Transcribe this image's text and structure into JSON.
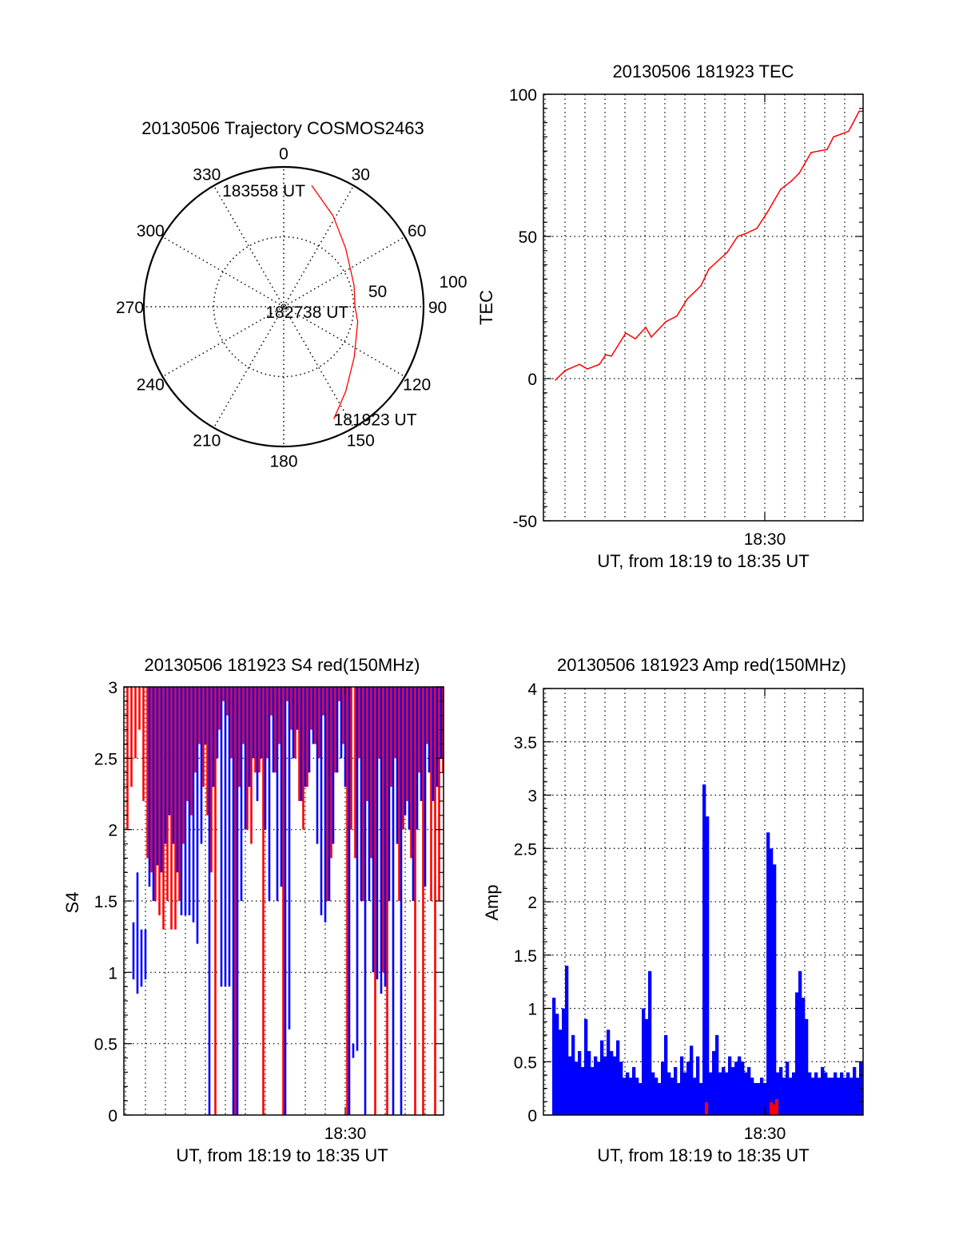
{
  "chart_data": [
    {
      "type": "polar",
      "title": "20130506 Trajectory COSMOS2463",
      "theta_ticks": [
        "0",
        "30",
        "60",
        "90",
        "120",
        "150",
        "180",
        "210",
        "240",
        "270",
        "300",
        "330"
      ],
      "theta_values": [
        0,
        30,
        60,
        90,
        120,
        150,
        180,
        210,
        240,
        270,
        300,
        330
      ],
      "r_ticks": [
        "50",
        "100"
      ],
      "r_values": [
        50,
        100
      ],
      "rlim": [
        0,
        100
      ],
      "grid": true,
      "trajectory_color": "#ff0000",
      "trajectory": [
        [
          156,
          88
        ],
        [
          143.7,
          75
        ],
        [
          125.6,
          62
        ],
        [
          101.5,
          54
        ],
        [
          90,
          51
        ],
        [
          73,
          52.6
        ],
        [
          46.5,
          61
        ],
        [
          28.5,
          74
        ],
        [
          13,
          89
        ]
      ],
      "annotations": [
        {
          "text": "181923 UT",
          "az": 156,
          "r": 88
        },
        {
          "text": "182738 UT",
          "az": 90,
          "r": 51
        },
        {
          "text": "183558 UT",
          "az": 13,
          "r": 89
        }
      ]
    },
    {
      "type": "line",
      "title": "20130506 181923 TEC",
      "xlabel": "UT, from 18:19 to 18:35 UT",
      "ylabel": "TEC",
      "xlim": [
        18.92,
        34.92
      ],
      "ylim": [
        -50,
        100
      ],
      "yticks": [
        -50,
        0,
        50,
        100
      ],
      "ytick_labels": [
        "-50",
        "0",
        "50",
        "100"
      ],
      "xticks": [
        30
      ],
      "xtick_labels": [
        "18:30"
      ],
      "grid": true,
      "series": [
        {
          "name": "TEC",
          "color": "#ff0000",
          "x": [
            19.52,
            20.0,
            20.72,
            21.12,
            21.72,
            22.04,
            22.32,
            23.04,
            23.52,
            24.04,
            24.32,
            25.04,
            25.6,
            26.12,
            26.8,
            27.2,
            28.12,
            28.64,
            29.04,
            29.6,
            30.12,
            30.8,
            31.32,
            31.72,
            32.32,
            33.12,
            33.44,
            34.2,
            34.72,
            34.92
          ],
          "y": [
            -0.5,
            2.8,
            5,
            3.4,
            5,
            8.4,
            7.9,
            16,
            14,
            18,
            14.6,
            20,
            22,
            28,
            32.6,
            38.5,
            44.4,
            50,
            51,
            52.8,
            58.4,
            66.6,
            69.4,
            72.2,
            79.5,
            80.6,
            85,
            87,
            94,
            94
          ]
        }
      ]
    },
    {
      "type": "bar",
      "title": "20130506 181923 S4 red(150MHz)",
      "xlabel": "UT, from 18:19 to 18:35 UT",
      "ylabel": "S4",
      "xlim": [
        18.92,
        34.92
      ],
      "ylim": [
        0,
        3
      ],
      "yticks": [
        0,
        0.5,
        1,
        1.5,
        2,
        2.5,
        3
      ],
      "ytick_labels": [
        "0",
        "0.5",
        "1",
        "1.5",
        "2",
        "2.5",
        "3"
      ],
      "xticks": [
        30
      ],
      "xtick_labels": [
        "18:30"
      ],
      "grid": true,
      "series": [
        {
          "name": "red",
          "color": "#ff0000",
          "x_start": 19.1,
          "x_step": 0.2,
          "ranges_low": [
            2.0,
            2.3,
            2.5,
            2.7,
            2.2,
            1.8,
            1.7,
            1.5,
            1.4,
            1.3,
            1.5,
            1.3,
            1.3,
            1.5,
            1.9,
            2.2,
            2.1,
            2.4,
            2.6,
            2.3,
            2.1,
            1.7,
            0,
            2.7,
            2.9,
            2.8,
            2.5,
            0,
            2.3,
            2.6,
            2.0,
            1.9,
            2.4,
            2.4,
            0,
            2.5,
            2.8,
            2.4,
            2.6,
            0,
            2.9,
            2.7,
            2.5,
            2.2,
            2.0,
            2.3,
            2.7,
            2.6,
            2.5,
            2.8,
            1.5,
            1.8,
            2.4,
            2.9,
            2.6,
            0,
            2.0,
            1.8,
            2.5,
            1.5,
            2.2,
            1.8,
            0,
            2.5,
            1.0,
            0,
            2.3,
            2.5,
            1.5,
            2.0,
            2.2,
            1.8,
            0,
            2.4,
            0,
            2.6,
            1.5,
            0,
            1.5,
            2.4
          ],
          "range_high": 3
        },
        {
          "name": "blue",
          "color": "#0000ff",
          "x_start": 19.0,
          "x_step": 0.2,
          "ranges": [
            null,
            null,
            [
              0.95,
              1.35
            ],
            [
              0.85,
              1.7
            ],
            [
              0.9,
              1.3
            ],
            [
              0.95,
              1.3
            ],
            [
              1.6,
              3
            ],
            [
              1.5,
              3
            ],
            [
              1.75,
              3
            ],
            [
              1.7,
              3
            ],
            [
              1.9,
              3
            ],
            [
              2.1,
              3
            ],
            [
              1.9,
              3
            ],
            [
              1.7,
              3
            ],
            [
              1.4,
              3
            ],
            [
              1.4,
              3
            ],
            [
              1.4,
              3
            ],
            [
              1.35,
              3
            ],
            [
              1.2,
              3
            ],
            [
              1.9,
              3
            ],
            [
              2.6,
              3
            ],
            [
              0,
              3
            ],
            [
              2.3,
              3
            ],
            [
              2.5,
              3
            ],
            [
              0.9,
              3
            ],
            [
              0.9,
              3
            ],
            [
              0.9,
              3
            ],
            [
              0,
              3
            ],
            [
              0,
              3
            ],
            [
              1.5,
              3
            ],
            [
              2.0,
              3
            ],
            [
              2.3,
              3
            ],
            [
              2.5,
              3
            ],
            [
              2.2,
              3
            ],
            [
              2.5,
              3
            ],
            [
              2.0,
              3
            ],
            [
              1.5,
              3
            ],
            [
              2.4,
              3
            ],
            [
              1.5,
              3
            ],
            [
              1.6,
              3
            ],
            [
              0,
              3
            ],
            [
              0.6,
              3
            ],
            [
              2.5,
              3
            ],
            [
              2.7,
              3
            ],
            [
              2.2,
              3
            ],
            [
              2.3,
              3
            ],
            [
              2.4,
              3
            ],
            [
              2.6,
              3
            ],
            [
              1.9,
              3
            ],
            [
              1.4,
              3
            ],
            [
              1.35,
              3
            ],
            [
              1.5,
              3
            ],
            [
              1.9,
              3
            ],
            [
              2.4,
              3
            ],
            [
              2.5,
              3
            ],
            [
              2.3,
              3
            ],
            [
              0,
              3
            ],
            [
              0.4,
              0.5
            ],
            [
              0.45,
              3
            ],
            [
              1.5,
              3
            ],
            [
              0,
              3
            ],
            [
              1.5,
              3
            ],
            [
              1.0,
              3
            ],
            [
              0.95,
              3
            ],
            [
              0.85,
              3
            ],
            [
              0.9,
              3
            ],
            [
              1.5,
              3
            ],
            [
              0,
              3
            ],
            [
              1.9,
              3
            ],
            [
              0,
              3
            ],
            [
              2.1,
              3
            ],
            [
              2.0,
              3
            ],
            [
              1.5,
              3
            ],
            [
              2.0,
              3
            ],
            [
              2.2,
              3
            ],
            [
              1.6,
              3
            ],
            [
              2.4,
              3
            ],
            [
              2.2,
              3
            ],
            [
              2.3,
              3
            ],
            [
              2.5,
              3
            ]
          ]
        }
      ]
    },
    {
      "type": "bar",
      "title": "20130506 181923 Amp red(150MHz)",
      "xlabel": "UT, from 18:19 to 18:35 UT",
      "ylabel": "Amp",
      "xlim": [
        18.92,
        34.92
      ],
      "ylim": [
        0,
        4
      ],
      "yticks": [
        0,
        0.5,
        1,
        1.5,
        2,
        2.5,
        3,
        3.5,
        4
      ],
      "ytick_labels": [
        "0",
        "0.5",
        "1",
        "1.5",
        "2",
        "2.5",
        "3",
        "3.5",
        "4"
      ],
      "xticks": [
        30
      ],
      "xtick_labels": [
        "18:30"
      ],
      "grid": true,
      "series": [
        {
          "name": "blue",
          "color": "#0000ff",
          "x_start": 19.44,
          "x_step": 0.16,
          "values": [
            1.1,
            0.95,
            0.8,
            1.0,
            1.4,
            0.55,
            0.75,
            0.5,
            0.6,
            0.45,
            0.9,
            0.6,
            0.45,
            0.55,
            0.5,
            0.7,
            0.55,
            0.8,
            0.6,
            0.55,
            0.7,
            0.5,
            0.35,
            0.4,
            0.35,
            0.45,
            0.35,
            0.3,
            1.0,
            0.9,
            1.35,
            0.4,
            0.35,
            0.3,
            0.5,
            0.75,
            0.4,
            0.35,
            0.45,
            0.3,
            0.55,
            0.4,
            0.5,
            0.65,
            0.35,
            0.55,
            0.3,
            3.1,
            2.8,
            0.4,
            0.6,
            0.75,
            0.4,
            0.45,
            0.4,
            0.55,
            0.45,
            0.5,
            0.55,
            0.5,
            0.4,
            0.45,
            0.35,
            0.3,
            0.3,
            0.35,
            0.3,
            2.65,
            2.5,
            2.35,
            0.4,
            0.45,
            0.35,
            0.5,
            0.35,
            0.4,
            1.15,
            1.35,
            1.1,
            0.9,
            0.4,
            0.35,
            0.4,
            0.35,
            0.45,
            0.4,
            0.35,
            0.35,
            0.4,
            0.35,
            0.4,
            0.35,
            0.4,
            0.35,
            0.45,
            0.35,
            0.5
          ]
        },
        {
          "name": "red",
          "color": "#ff0000",
          "points": [
            [
              27.08,
              0.12
            ],
            [
              30.32,
              0.12
            ],
            [
              30.48,
              0.1
            ],
            [
              30.6,
              0.15
            ]
          ]
        }
      ]
    }
  ]
}
